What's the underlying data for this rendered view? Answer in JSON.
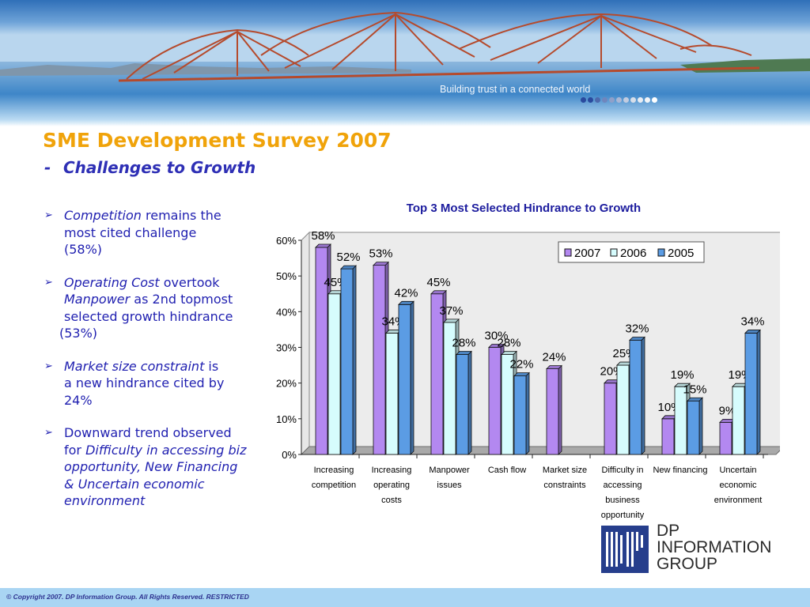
{
  "banner": {
    "tagline": "Building trust in a connected world",
    "progress_dot_colors": [
      "#2a4a9e",
      "#2a4a9e",
      "#4d69ad",
      "#6f86bd",
      "#8fa0c9",
      "#aab7d5",
      "#c2cce0",
      "#d7dee9",
      "#e8ecf2",
      "#f3f5f8",
      "#ffffff"
    ]
  },
  "header": {
    "title": "SME Development Survey 2007",
    "subtitle_dash": "-",
    "subtitle": "Challenges to Growth"
  },
  "bullets": {
    "marker": "➢",
    "b1": {
      "l1_em": "Competition",
      "l1_rest": " remains the",
      "l2": "most cited challenge",
      "l3": "(58%)"
    },
    "b2": {
      "l1_em": "Operating Cost",
      "l1_rest": " overtook",
      "l2_em": "Manpower",
      "l2_rest": " as 2nd topmost",
      "l3": "selected growth hindrance",
      "l4": "(53%)"
    },
    "b3": {
      "l1_em": "Market size constraint",
      "l1_rest": " is",
      "l2": "a new hindrance cited by",
      "l3": "24%"
    },
    "b4": {
      "l1": "Downward trend observed",
      "l2_pre": "for ",
      "l2_em": "Difficulty in accessing biz",
      "l3": "opportunity, New Financing",
      "l4": "& Uncertain economic",
      "l5": "environment"
    }
  },
  "chart_data": {
    "type": "bar",
    "title": "Top 3 Most Selected Hindrance to Growth",
    "categories": [
      [
        "Increasing",
        "competition"
      ],
      [
        "Increasing",
        "operating",
        "costs"
      ],
      [
        "Manpower",
        "issues"
      ],
      [
        "Cash flow"
      ],
      [
        "Market size",
        "constraints"
      ],
      [
        "Difficulty in",
        "accessing",
        "business",
        "opportunity"
      ],
      [
        "New financing"
      ],
      [
        "Uncertain",
        "economic",
        "environment"
      ]
    ],
    "series": [
      {
        "name": "2007",
        "color": "#b388f0",
        "values": [
          58,
          53,
          45,
          30,
          24,
          20,
          10,
          9
        ]
      },
      {
        "name": "2006",
        "color": "#d6fcfd",
        "values": [
          45,
          34,
          37,
          28,
          null,
          25,
          19,
          19
        ]
      },
      {
        "name": "2005",
        "color": "#5b9ce4",
        "values": [
          52,
          42,
          28,
          22,
          null,
          32,
          15,
          34
        ]
      }
    ],
    "y_ticks": [
      "0%",
      "10%",
      "20%",
      "30%",
      "40%",
      "50%",
      "60%"
    ],
    "ylim": [
      0,
      60
    ],
    "data_label_suffix": "%",
    "legend_position": "top-right",
    "grid": false
  },
  "logo": {
    "monogram": "DP",
    "lines": [
      "DP",
      "INFORMATION",
      "GROUP"
    ]
  },
  "footer": {
    "copyright": "© Copyright 2007. DP Information Group. All Rights Reserved. RESTRICTED"
  }
}
